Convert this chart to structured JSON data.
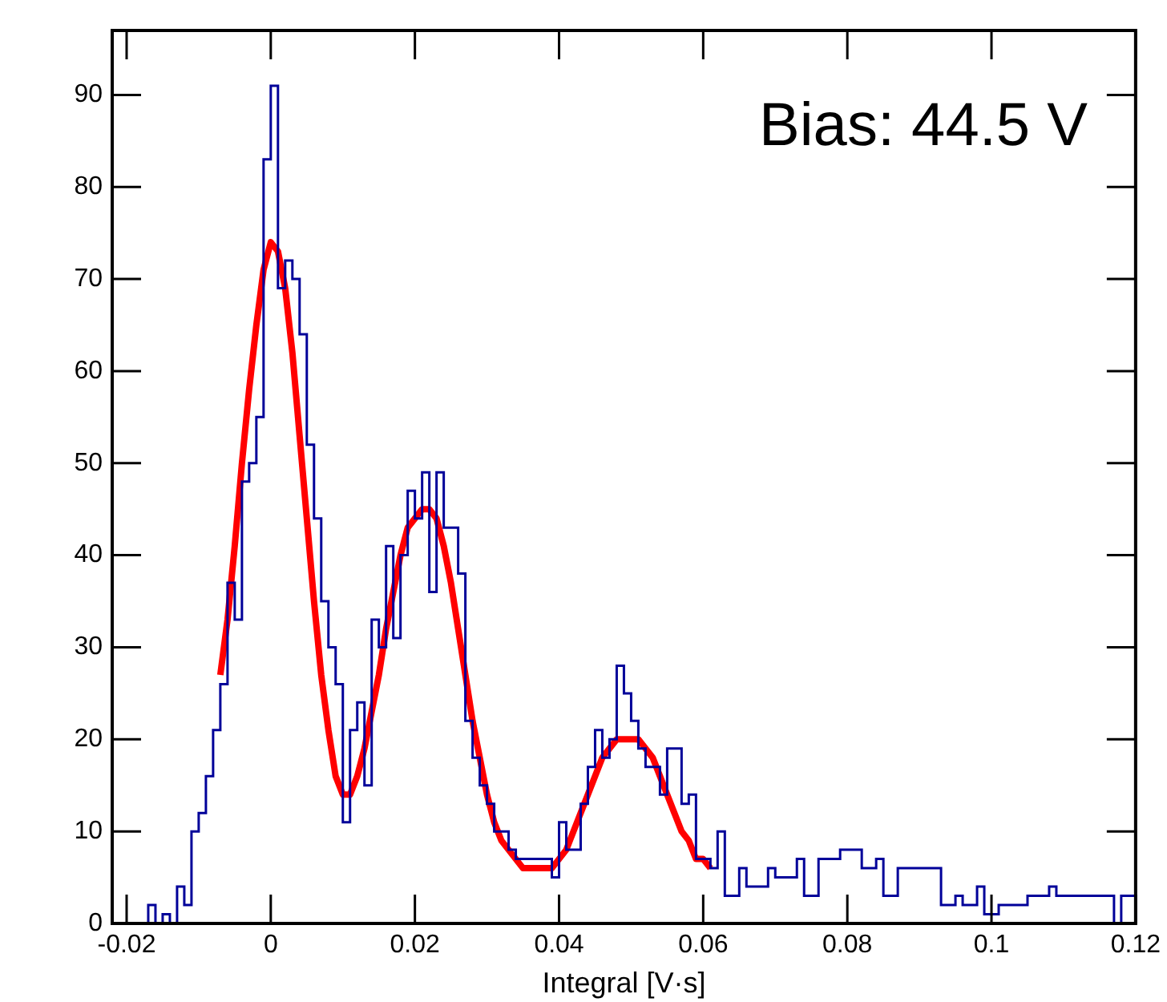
{
  "chart_data": {
    "type": "histogram",
    "xlabel": "Integral [V·s]",
    "annotations": [
      "Bias: 44.5 V"
    ],
    "xlim": [
      -0.022,
      0.12
    ],
    "xticks": [
      -0.02,
      0,
      0.02,
      0.04,
      0.06,
      0.08,
      0.1,
      0.12
    ],
    "ylim": [
      0,
      97
    ],
    "yticks": [
      0,
      10,
      20,
      30,
      40,
      50,
      60,
      70,
      80,
      90
    ],
    "grid": false,
    "legend": false,
    "color": "#000099",
    "bins": [
      -0.022,
      -0.021,
      -0.02,
      -0.019,
      -0.018,
      -0.017,
      -0.016,
      -0.015,
      -0.014,
      -0.013,
      -0.012,
      -0.011,
      -0.01,
      -0.009,
      -0.008,
      -0.007,
      -0.006,
      -0.005,
      -0.004,
      -0.003,
      -0.002,
      -0.001,
      0,
      0.001,
      0.002,
      0.003,
      0.004,
      0.005,
      0.006,
      0.007,
      0.008,
      0.009,
      0.01,
      0.011,
      0.012,
      0.013,
      0.014,
      0.015,
      0.016,
      0.017,
      0.018,
      0.019,
      0.02,
      0.021,
      0.022,
      0.023,
      0.024,
      0.025,
      0.026,
      0.027,
      0.028,
      0.029,
      0.03,
      0.031,
      0.032,
      0.033,
      0.034,
      0.035,
      0.036,
      0.037,
      0.038,
      0.039,
      0.04,
      0.041,
      0.042,
      0.043,
      0.044,
      0.045,
      0.046,
      0.047,
      0.048,
      0.049,
      0.05,
      0.051,
      0.052,
      0.053,
      0.054,
      0.055,
      0.056,
      0.057,
      0.058,
      0.059,
      0.06,
      0.061,
      0.062,
      0.063,
      0.064,
      0.065,
      0.066,
      0.067,
      0.068,
      0.069,
      0.07,
      0.071,
      0.072,
      0.073,
      0.074,
      0.075,
      0.076,
      0.077,
      0.078,
      0.079,
      0.08,
      0.081,
      0.082,
      0.083,
      0.084,
      0.085,
      0.086,
      0.087,
      0.088,
      0.089,
      0.09,
      0.091,
      0.092,
      0.093,
      0.094,
      0.095,
      0.096,
      0.097,
      0.098,
      0.099,
      0.1,
      0.101,
      0.102,
      0.103,
      0.104,
      0.105,
      0.106,
      0.107,
      0.108,
      0.109,
      0.11,
      0.111,
      0.112,
      0.113,
      0.114,
      0.115,
      0.116,
      0.117,
      0.118,
      0.119,
      0.12
    ],
    "values": [
      0,
      0,
      0,
      0,
      0,
      2,
      0,
      1,
      0,
      4,
      2,
      10,
      12,
      16,
      21,
      26,
      37,
      33,
      48,
      50,
      55,
      83,
      91,
      69,
      72,
      70,
      64,
      52,
      44,
      35,
      30,
      26,
      11,
      21,
      24,
      15,
      33,
      30,
      41,
      31,
      40,
      47,
      44,
      49,
      36,
      49,
      43,
      43,
      38,
      22,
      18,
      15,
      13,
      10,
      10,
      8,
      7,
      7,
      7,
      7,
      7,
      5,
      11,
      8,
      8,
      13,
      17,
      21,
      18,
      20,
      28,
      25,
      22,
      19,
      17,
      17,
      14,
      19,
      19,
      13,
      14,
      7,
      7,
      6,
      10,
      3,
      3,
      6,
      4,
      4,
      4,
      6,
      5,
      5,
      5,
      7,
      3,
      3,
      7,
      7,
      7,
      8,
      8,
      8,
      6,
      6,
      7,
      3,
      3,
      6,
      6,
      6,
      6,
      6,
      6,
      2,
      2,
      3,
      2,
      2,
      4,
      1,
      1,
      2,
      2,
      2,
      2,
      3,
      3,
      3,
      4,
      3,
      3,
      3,
      3,
      3,
      3,
      3,
      3,
      0,
      3,
      3
    ],
    "series": [
      {
        "type": "line",
        "color": "#ff0000",
        "x": [
          -0.007,
          -0.006,
          -0.005,
          -0.004,
          -0.003,
          -0.002,
          -0.001,
          0,
          0.001,
          0.002,
          0.003,
          0.004,
          0.005,
          0.006,
          0.007,
          0.008,
          0.009,
          0.01,
          0.011,
          0.012,
          0.013,
          0.014,
          0.015,
          0.016,
          0.017,
          0.018,
          0.019,
          0.02,
          0.021,
          0.022,
          0.023,
          0.024,
          0.025,
          0.026,
          0.027,
          0.028,
          0.029,
          0.03,
          0.031,
          0.032,
          0.033,
          0.034,
          0.035,
          0.036,
          0.037,
          0.038,
          0.039,
          0.04,
          0.041,
          0.042,
          0.043,
          0.044,
          0.045,
          0.046,
          0.047,
          0.048,
          0.049,
          0.05,
          0.051,
          0.052,
          0.053,
          0.054,
          0.055,
          0.056,
          0.057,
          0.058,
          0.059,
          0.06,
          0.061
        ],
        "values": [
          27,
          33,
          41,
          50,
          58,
          65,
          71,
          74,
          73,
          69,
          62,
          53,
          44,
          35,
          27,
          21,
          16,
          14,
          14,
          16,
          19,
          23,
          27,
          32,
          36,
          40,
          43,
          44,
          45,
          45,
          44,
          41,
          37,
          32,
          27,
          22,
          18,
          14,
          11,
          9,
          8,
          7,
          6,
          6,
          6,
          6,
          6,
          7,
          8,
          10,
          12,
          14,
          16,
          18,
          19,
          20,
          20,
          20,
          20,
          19,
          18,
          16,
          14,
          12,
          10,
          9,
          7,
          7,
          6
        ]
      }
    ]
  }
}
